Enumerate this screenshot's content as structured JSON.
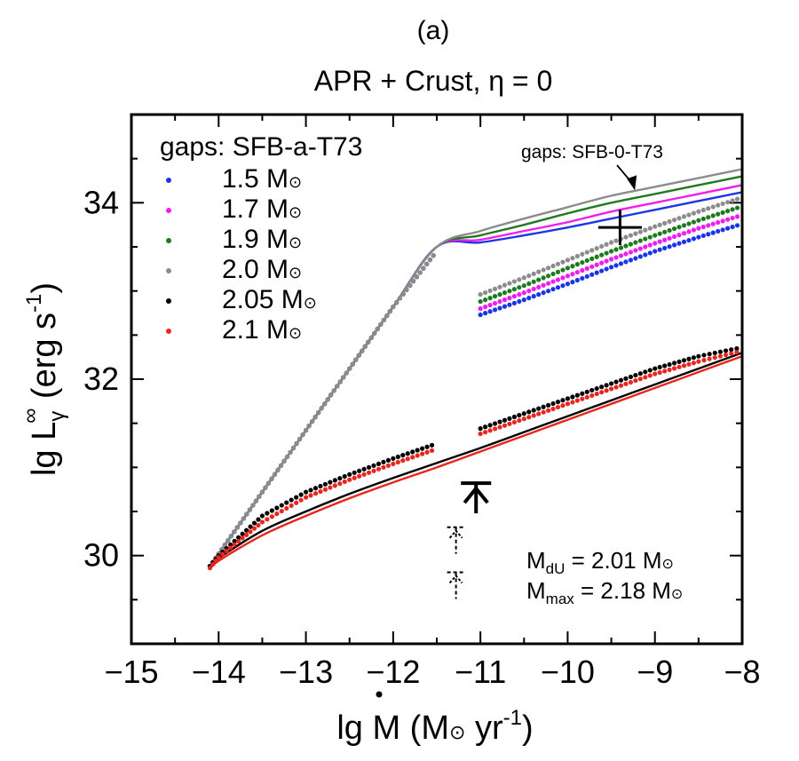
{
  "panel_label": "(a)",
  "chart_data": {
    "type": "line",
    "title": "APR + Crust, η = 0",
    "xlabel": {
      "base": "lg ",
      "dotted_symbol": "M",
      "rest": " (M",
      "sun": "⊙",
      "tail": " yr",
      "sup": "-1",
      "close": ")"
    },
    "ylabel": {
      "base": "lg L",
      "sub": "γ",
      "sup_inf": "∞",
      "rest": " (erg s",
      "sup": "-1",
      "close": ")"
    },
    "xlim": [
      -15,
      -8
    ],
    "ylim": [
      29,
      35
    ],
    "x_ticks": [
      -15,
      -14,
      -13,
      -12,
      -11,
      -10,
      -9,
      -8
    ],
    "x_tick_labels": [
      "−15",
      "−14",
      "−13",
      "−12",
      "−11",
      "−10",
      "−9",
      "−8"
    ],
    "y_ticks": [
      30,
      32,
      34
    ],
    "y_tick_labels": [
      "30",
      "32",
      "34"
    ],
    "x_minor_step": 0.5,
    "y_minor_step": 0.5,
    "legend": {
      "title": "gaps: SFB-a-T73",
      "placement": "top-left",
      "sun_symbol": "⊙",
      "entries": [
        {
          "label": "1.5 M",
          "color": "#1a35e8"
        },
        {
          "label": "1.7 M",
          "color": "#f01cf0"
        },
        {
          "label": "1.9 M",
          "color": "#1e7a1e"
        },
        {
          "label": "2.0 M",
          "color": "#8c8c8c"
        },
        {
          "label": "2.05 M",
          "color": "#000000"
        },
        {
          "label": "2.1 M",
          "color": "#e8261e"
        }
      ]
    },
    "annotation_top": {
      "text": "gaps: SFB-0-T73",
      "arrow_to": [
        -9.25,
        34.15
      ]
    },
    "annotation_masses": {
      "line1": {
        "pre": "M",
        "sub": "dU",
        "post": " = 2.01 M",
        "sun": "⊙"
      },
      "line2": {
        "pre": "M",
        "sub": "max",
        "post": " = 2.18 M",
        "sun": "⊙"
      }
    },
    "x": [
      -14.1,
      -14.0,
      -13.5,
      -13.0,
      -12.5,
      -12.0,
      -11.5,
      -11.0,
      -10.5,
      -10.0,
      -9.5,
      -9.0,
      -8.5,
      -8.0
    ],
    "series_solid": [
      {
        "color": "#1a35e8",
        "values": [
          29.88,
          30.02,
          30.72,
          31.42,
          32.12,
          32.82,
          33.5,
          33.55,
          33.63,
          33.72,
          33.82,
          33.92,
          34.02,
          34.12
        ]
      },
      {
        "color": "#f01cf0",
        "values": [
          29.88,
          30.02,
          30.72,
          31.42,
          32.12,
          32.82,
          33.5,
          33.58,
          33.68,
          33.78,
          33.9,
          34.0,
          34.1,
          34.2
        ]
      },
      {
        "color": "#1e7a1e",
        "values": [
          29.88,
          30.02,
          30.72,
          31.42,
          32.12,
          32.82,
          33.5,
          33.63,
          33.75,
          33.88,
          34.0,
          34.1,
          34.2,
          34.3
        ]
      },
      {
        "color": "#8c8c8c",
        "values": [
          29.88,
          30.02,
          30.72,
          31.42,
          32.12,
          32.82,
          33.5,
          33.68,
          33.82,
          33.95,
          34.08,
          34.18,
          34.28,
          34.38
        ]
      },
      {
        "color": "#000000",
        "values": [
          29.86,
          29.97,
          30.28,
          30.5,
          30.7,
          30.88,
          31.05,
          31.22,
          31.4,
          31.58,
          31.76,
          31.94,
          32.12,
          32.3
        ]
      },
      {
        "color": "#e8261e",
        "values": [
          29.84,
          29.94,
          30.23,
          30.45,
          30.65,
          30.83,
          31.0,
          31.18,
          31.36,
          31.54,
          31.72,
          31.9,
          32.08,
          32.26
        ]
      }
    ],
    "series_dotted": [
      {
        "color": "#1a35e8",
        "values": [
          29.88,
          30.02,
          30.72,
          31.42,
          32.12,
          32.82,
          33.45,
          32.73,
          32.9,
          33.08,
          33.27,
          33.45,
          33.61,
          33.76
        ]
      },
      {
        "color": "#f01cf0",
        "values": [
          29.88,
          30.02,
          30.72,
          31.42,
          32.12,
          32.82,
          33.45,
          32.8,
          32.98,
          33.17,
          33.36,
          33.54,
          33.71,
          33.86
        ]
      },
      {
        "color": "#1e7a1e",
        "values": [
          29.88,
          30.02,
          30.72,
          31.42,
          32.12,
          32.82,
          33.45,
          32.88,
          33.06,
          33.26,
          33.45,
          33.63,
          33.8,
          33.96
        ]
      },
      {
        "color": "#8c8c8c",
        "values": [
          29.88,
          30.02,
          30.72,
          31.42,
          32.12,
          32.82,
          33.45,
          32.96,
          33.15,
          33.35,
          33.55,
          33.73,
          33.9,
          34.06
        ]
      },
      {
        "color": "#000000",
        "values": [
          29.88,
          30.0,
          30.45,
          30.72,
          30.92,
          31.1,
          31.27,
          31.44,
          31.61,
          31.78,
          31.95,
          32.12,
          32.26,
          32.36
        ]
      },
      {
        "color": "#e8261e",
        "values": [
          29.86,
          29.98,
          30.38,
          30.66,
          30.86,
          31.04,
          31.21,
          31.38,
          31.55,
          31.72,
          31.89,
          32.06,
          32.2,
          32.32
        ]
      }
    ],
    "observations": {
      "cross": {
        "x": -9.4,
        "y": 33.72,
        "dx": 0.25,
        "dy": 0.2
      },
      "upper_limit_solid": {
        "x": -11.05,
        "y": 30.62
      },
      "upper_limits_dashed": [
        {
          "x": -11.28,
          "y": 30.18
        },
        {
          "x": -11.28,
          "y": 29.67
        }
      ]
    }
  }
}
